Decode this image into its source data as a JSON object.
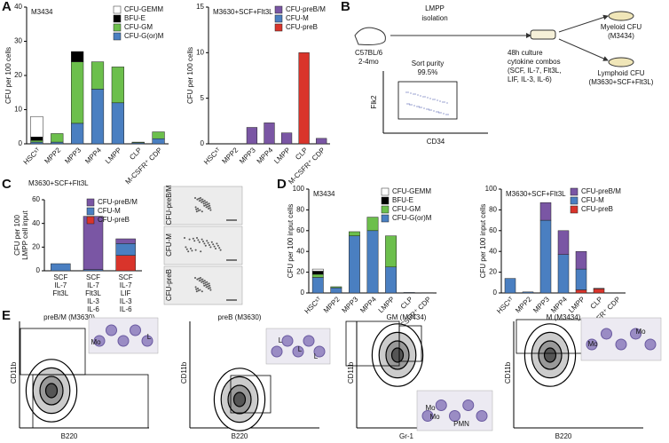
{
  "panel_labels": [
    "A",
    "B",
    "C",
    "D",
    "E"
  ],
  "chart_data": [
    {
      "type": "bar",
      "title": "M3434",
      "ylabel": "CFU per 100 cells",
      "categories": [
        "HSCˢᵀ",
        "MPP2",
        "MPP3",
        "MPP4",
        "LMPP",
        "CLP",
        "M-CSFR⁺ CDP"
      ],
      "series": [
        {
          "name": "CFU-GEMM",
          "color": "#ffffff",
          "values": [
            6,
            0,
            0,
            0,
            0,
            0,
            0
          ]
        },
        {
          "name": "BFU-E",
          "color": "#000000",
          "values": [
            1,
            0,
            3,
            0,
            0,
            0,
            0
          ]
        },
        {
          "name": "CFU-GM",
          "color": "#6cbf4c",
          "values": [
            0.5,
            2.5,
            18,
            8,
            10.5,
            0.2,
            2
          ]
        },
        {
          "name": "CFU-G(or)M",
          "color": "#4a7fc1",
          "values": [
            0.5,
            0.5,
            6,
            16,
            12,
            0.3,
            1.5
          ]
        }
      ],
      "ylim": [
        0,
        40
      ],
      "yticks": [
        0,
        10,
        20,
        30,
        40
      ]
    },
    {
      "type": "bar",
      "title": "M3630+SCF+Flt3L",
      "ylabel": "CFU per 100 cells",
      "categories": [
        "HSCˢᵀ",
        "MPP2",
        "MPP3",
        "MPP4",
        "LMPP",
        "CLP",
        "M-CSFR⁺ CDP"
      ],
      "series": [
        {
          "name": "CFU-preB/M",
          "color": "#7a56a4",
          "values": [
            0,
            0,
            1.8,
            2.3,
            1.2,
            0,
            0.6
          ]
        },
        {
          "name": "CFU-M",
          "color": "#4a7fc1",
          "values": [
            0,
            0,
            0,
            0,
            0,
            0,
            0
          ]
        },
        {
          "name": "CFU-preB",
          "color": "#d9342b",
          "values": [
            0,
            0,
            0,
            0,
            0,
            10,
            0
          ]
        }
      ],
      "ylim": [
        0,
        15
      ],
      "yticks": [
        0,
        5,
        10,
        15
      ]
    },
    {
      "type": "bar",
      "title": "M3630+SCF+Flt3L",
      "ylabel": [
        "CFU per 100",
        "LMPP cell input"
      ],
      "categories": [
        [
          "SCF",
          "IL-7",
          "Flt3L"
        ],
        [
          "SCF",
          "IL-7",
          "Flt3L",
          "IL-3",
          "IL-6"
        ],
        [
          "SCF",
          "IL-7",
          "LIF",
          "IL-3",
          "IL-6"
        ]
      ],
      "series": [
        {
          "name": "CFU-preB/M",
          "color": "#7a56a4",
          "values": [
            0,
            45,
            4
          ]
        },
        {
          "name": "CFU-M",
          "color": "#4a7fc1",
          "values": [
            6,
            1,
            10
          ]
        },
        {
          "name": "CFU-preB",
          "color": "#d9342b",
          "values": [
            0,
            0,
            13
          ]
        }
      ],
      "ylim": [
        0,
        60
      ],
      "yticks": [
        0,
        20,
        40,
        60
      ]
    },
    {
      "type": "bar",
      "title": "M3434",
      "ylabel": "CFU per 100 input cells",
      "categories": [
        "HSCˢᵀ",
        "MPP2",
        "MPP3",
        "MPP4",
        "LMPP",
        "CLP",
        "M-CSFR⁺ CDP"
      ],
      "series": [
        {
          "name": "CFU-GEMM",
          "color": "#ffffff",
          "values": [
            2,
            0,
            0,
            0,
            0,
            0,
            0
          ]
        },
        {
          "name": "BFU-E",
          "color": "#000000",
          "values": [
            3,
            0,
            0,
            0,
            0,
            0,
            0
          ]
        },
        {
          "name": "CFU-GM",
          "color": "#6cbf4c",
          "values": [
            3,
            1,
            4,
            13,
            30,
            0,
            0
          ]
        },
        {
          "name": "CFU-G(or)M",
          "color": "#4a7fc1",
          "values": [
            15,
            5,
            55,
            60,
            25,
            0.5,
            0.3
          ]
        }
      ],
      "ylim": [
        0,
        100
      ],
      "yticks": [
        0,
        20,
        40,
        60,
        80,
        100
      ]
    },
    {
      "type": "bar",
      "title": "M3630+SCF+Flt3L",
      "ylabel": "CFU per 100 input cells",
      "categories": [
        "HSCˢᵀ",
        "MPP2",
        "MPP3",
        "MPP4",
        "LMPP",
        "CLP",
        "M-CSFR⁺ CDP"
      ],
      "series": [
        {
          "name": "CFU-preB/M",
          "color": "#7a56a4",
          "values": [
            0,
            0,
            17,
            23,
            17,
            0.5,
            0
          ]
        },
        {
          "name": "CFU-M",
          "color": "#4a7fc1",
          "values": [
            14,
            1,
            70,
            37,
            20,
            0,
            0
          ]
        },
        {
          "name": "CFU-preB",
          "color": "#d9342b",
          "values": [
            0,
            0,
            0,
            0,
            3,
            4,
            0
          ]
        }
      ],
      "ylim": [
        0,
        100
      ],
      "yticks": [
        0,
        20,
        40,
        60,
        80,
        100
      ]
    }
  ],
  "diagram": {
    "mouse": [
      "C57BL/6",
      "2-4mo"
    ],
    "step1": [
      "LMPP",
      "isolation"
    ],
    "sort_title": "Sort purity",
    "sort_value": "99.5%",
    "y_axis": "Flk2",
    "x_axis": "CD34",
    "culture": [
      "48h culture",
      "cytokine combos",
      "(SCF, IL-7, Flt3L,",
      "LIF, IL-3, IL-6)"
    ],
    "outputs": [
      [
        "Myeloid CFU",
        "(M3434)"
      ],
      [
        "Lymphoid CFU",
        "(M3630+SCF+Flt3L)"
      ]
    ]
  },
  "colony_images": [
    "CFU-preB/M",
    "CFU-M",
    "CFU-preB"
  ],
  "flow_plots": [
    {
      "title": "preB/M (M3630)",
      "x_axis": "B220",
      "y_axis": "CD11b",
      "cell_labels": [
        "Mo",
        "L"
      ]
    },
    {
      "title": "preB (M3630)",
      "x_axis": "B220",
      "y_axis": "CD11b",
      "cell_labels": [
        "L",
        "L",
        "L"
      ]
    },
    {
      "title": "GM (M3434)",
      "x_axis": "Gr-1",
      "y_axis": "CD11b",
      "cell_labels": [
        "Mo",
        "Mo",
        "PMN"
      ]
    },
    {
      "title": "M (M3434)",
      "x_axis": "B220",
      "y_axis": "CD11b",
      "cell_labels": [
        "Mo",
        "Mo"
      ]
    }
  ]
}
